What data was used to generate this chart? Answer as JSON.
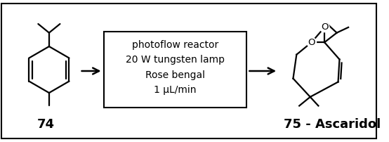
{
  "background_color": "#ffffff",
  "border_color": "#000000",
  "box_color": "#ffffff",
  "text_color": "#000000",
  "reaction_box_text": [
    "photoflow reactor",
    "20 W tungsten lamp",
    "Rose bengal",
    "1 μL/min"
  ],
  "label_74": "74",
  "label_75": "75 - Ascaridol",
  "label_fontsize": 13,
  "reaction_text_fontsize": 10,
  "fig_width": 5.54,
  "fig_height": 2.02,
  "dpi": 100
}
